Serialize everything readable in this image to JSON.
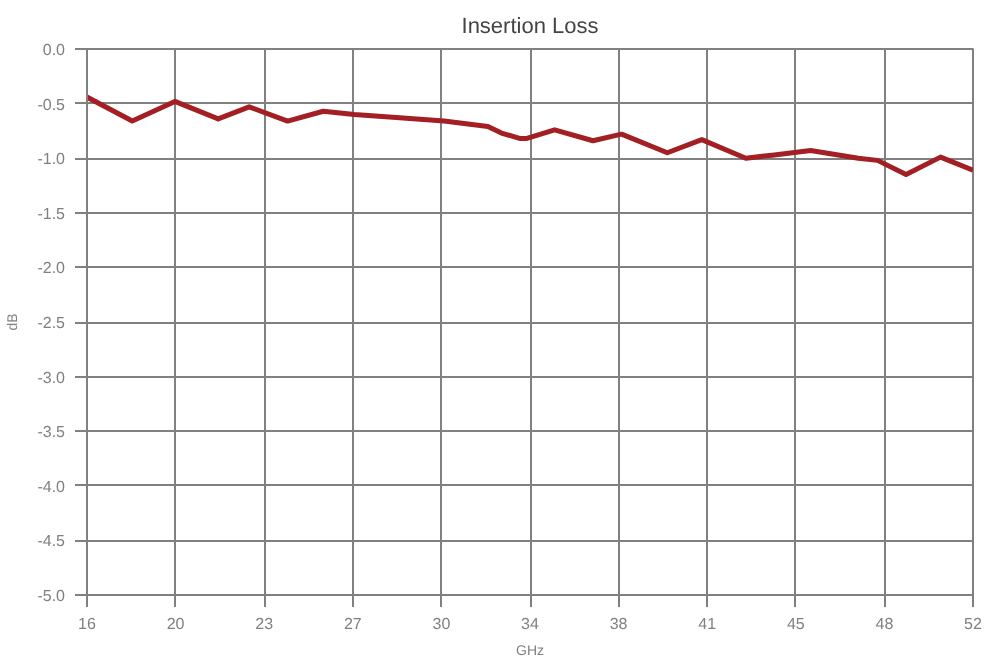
{
  "chart_data": {
    "type": "line",
    "title": "Insertion Loss",
    "xlabel": "GHz",
    "ylabel": "dB",
    "x": [
      16,
      17.84,
      19.57,
      21.33,
      22.59,
      24.15,
      25.6,
      26.86,
      28.7,
      30.51,
      32.29,
      32.84,
      33.61,
      33.84,
      35.0,
      36.56,
      37.72,
      39.58,
      40.98,
      42.77,
      43.93,
      45.4,
      47.34,
      48.12,
      49.28,
      50.68,
      52.0
    ],
    "series": [
      {
        "color": "#a31f24",
        "values": [
          -0.44,
          -0.66,
          -0.48,
          -0.64,
          -0.53,
          -0.66,
          -0.57,
          -0.6,
          -0.63,
          -0.66,
          -0.71,
          -0.77,
          -0.82,
          -0.82,
          -0.74,
          -0.84,
          -0.78,
          -0.95,
          -0.83,
          -1.0,
          -0.97,
          -0.93,
          -1.0,
          -1.02,
          -1.15,
          -0.99,
          -1.11
        ]
      }
    ],
    "xlim": [
      16,
      52
    ],
    "xticks": [
      16,
      {
        "value": 19.6,
        "label": "20"
      },
      {
        "value": 23.2,
        "label": "23"
      },
      {
        "value": 26.8,
        "label": "27"
      },
      {
        "value": 30.4,
        "label": "30"
      },
      34,
      {
        "value": 37.6,
        "label": "38"
      },
      {
        "value": 41.2,
        "label": "41"
      },
      {
        "value": 44.8,
        "label": "45"
      },
      {
        "value": 48.4,
        "label": "48"
      },
      52
    ],
    "ylim": [
      -5,
      0
    ],
    "yticks": [
      {
        "value": 0,
        "label": "0.0"
      },
      {
        "value": -0.5,
        "label": "-0.5"
      },
      {
        "value": -1,
        "label": "-1.0"
      },
      {
        "value": -1.5,
        "label": "-1.5"
      },
      {
        "value": -2,
        "label": "-2.0"
      },
      {
        "value": -2.5,
        "label": "-2.5"
      },
      {
        "value": -3,
        "label": "-3.0"
      },
      {
        "value": -3.5,
        "label": "-3.5"
      },
      {
        "value": -4,
        "label": "-4.0"
      },
      {
        "value": -4.5,
        "label": "-4.5"
      },
      {
        "value": -5,
        "label": "-5.0"
      }
    ],
    "grid": true,
    "line_style": "solid"
  }
}
